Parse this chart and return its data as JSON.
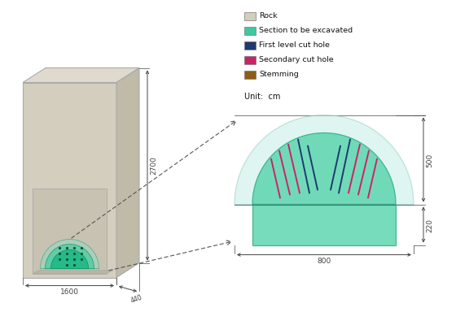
{
  "bg_color": "#ffffff",
  "rock_color": "#d4cebe",
  "rock_color_top": "#e0dace",
  "rock_color_side": "#c0baa8",
  "rock_edge_color": "#aaaaaa",
  "section_color": "#3dc9a0",
  "section_color_mid": "#55d4a8",
  "section_color_light": "#c5ede6",
  "section_edge_color": "#22aa80",
  "floor_color": "#bab4a4",
  "blue_line_color": "#1e3a6e",
  "red_line_color": "#cc2266",
  "dim_color": "#444444",
  "legend_items": [
    {
      "label": "Rock",
      "color": "#d4cebe"
    },
    {
      "label": "Section to be excavated",
      "color": "#3dc9a0"
    },
    {
      "label": "First level cut hole",
      "color": "#1e3a6e"
    },
    {
      "label": "Secondary cut hole",
      "color": "#cc2266"
    },
    {
      "label": "Stemming",
      "color": "#8b5e14"
    }
  ],
  "unit_text": "Unit:  cm",
  "dim_1600": "1600",
  "dim_440": "440",
  "dim_2700": "2700",
  "dim_800": "800",
  "dim_500": "500",
  "dim_220": "220"
}
